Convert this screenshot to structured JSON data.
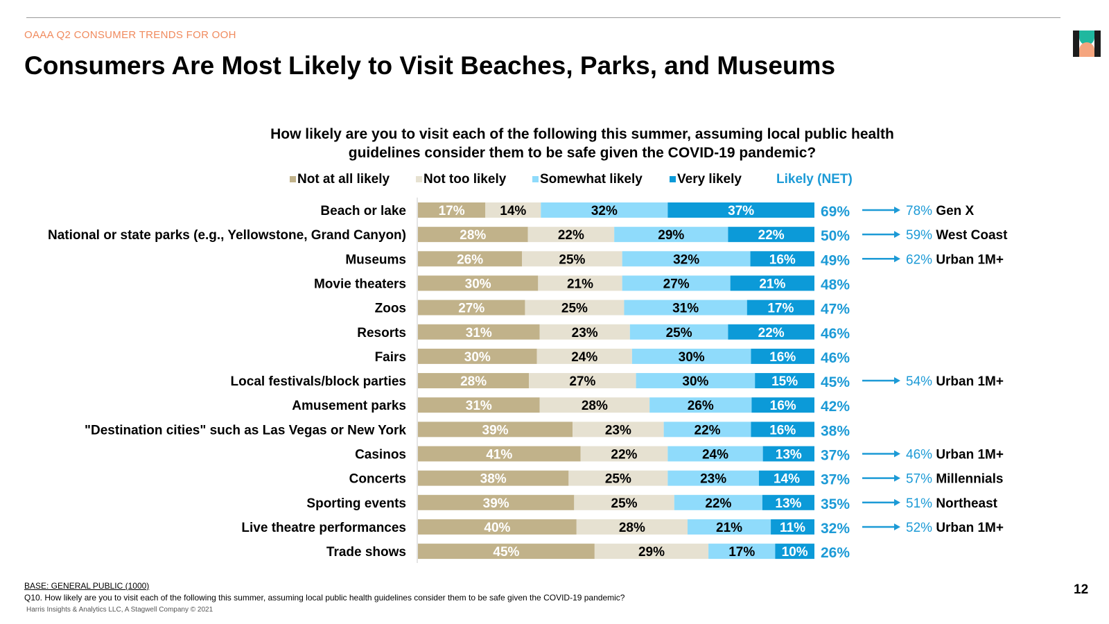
{
  "header": {
    "kicker": "OAAA Q2 CONSUMER TRENDS FOR OOH",
    "title": "Consumers Are Most Likely to Visit Beaches, Parks, and Museums",
    "page_number": "12"
  },
  "colors": {
    "not_at_all": "#c1b28a",
    "not_too": "#e6e1d1",
    "somewhat": "#8fdbfb",
    "very": "#0c9ad8",
    "net": "#1c9ad6",
    "kicker": "#f08a5d",
    "logo_dark": "#1c1c1c",
    "logo_teal": "#1fb89f",
    "logo_peach": "#f5a57e"
  },
  "footer": {
    "base": "BASE: GENERAL PUBLIC (1000)",
    "question": "Q10. How likely are you to visit each of the following this summer, assuming local public health guidelines consider them to be safe given the COVID-19 pandemic?",
    "copyright": "Harris Insights & Analytics LLC, A Stagwell Company © 2021"
  },
  "chart_data": {
    "type": "bar",
    "orientation": "horizontal",
    "stacked": true,
    "title": "How likely are you to visit each of the following this summer, assuming local public health guidelines consider them to be safe given the COVID-19 pandemic?",
    "legend": [
      "Not at all likely",
      "Not too likely",
      "Somewhat likely",
      "Very likely",
      "Likely (NET)"
    ],
    "net_label": "Likely (NET)",
    "categories": [
      "Beach or lake",
      "National or state parks (e.g., Yellowstone, Grand Canyon)",
      "Museums",
      "Movie theaters",
      "Zoos",
      "Resorts",
      "Fairs",
      "Local festivals/block parties",
      "Amusement parks",
      "\"Destination cities\" such as Las Vegas or New York",
      "Casinos",
      "Concerts",
      "Sporting events",
      "Live theatre performances",
      "Trade shows"
    ],
    "series": [
      {
        "name": "Not at all likely",
        "values": [
          17,
          28,
          26,
          30,
          27,
          31,
          30,
          28,
          31,
          39,
          41,
          38,
          39,
          40,
          45
        ]
      },
      {
        "name": "Not too likely",
        "values": [
          14,
          22,
          25,
          21,
          25,
          23,
          24,
          27,
          28,
          23,
          22,
          25,
          25,
          28,
          29
        ]
      },
      {
        "name": "Somewhat likely",
        "values": [
          32,
          29,
          32,
          27,
          31,
          25,
          30,
          30,
          26,
          22,
          24,
          23,
          22,
          21,
          17
        ]
      },
      {
        "name": "Very likely",
        "values": [
          37,
          22,
          16,
          21,
          17,
          22,
          16,
          15,
          16,
          16,
          13,
          14,
          13,
          11,
          10
        ]
      }
    ],
    "net_values": [
      69,
      50,
      49,
      48,
      47,
      46,
      46,
      45,
      42,
      38,
      37,
      37,
      35,
      32,
      26
    ],
    "callouts": [
      {
        "row": 0,
        "value": "78%",
        "label": "Gen X"
      },
      {
        "row": 1,
        "value": "59%",
        "label": "West Coast"
      },
      {
        "row": 2,
        "value": "62%",
        "label": "Urban 1M+"
      },
      {
        "row": 7,
        "value": "54%",
        "label": "Urban 1M+"
      },
      {
        "row": 10,
        "value": "46%",
        "label": "Urban 1M+"
      },
      {
        "row": 11,
        "value": "57%",
        "label": "Millennials"
      },
      {
        "row": 12,
        "value": "51%",
        "label": "Northeast"
      },
      {
        "row": 13,
        "value": "52%",
        "label": "Urban 1M+"
      }
    ]
  }
}
